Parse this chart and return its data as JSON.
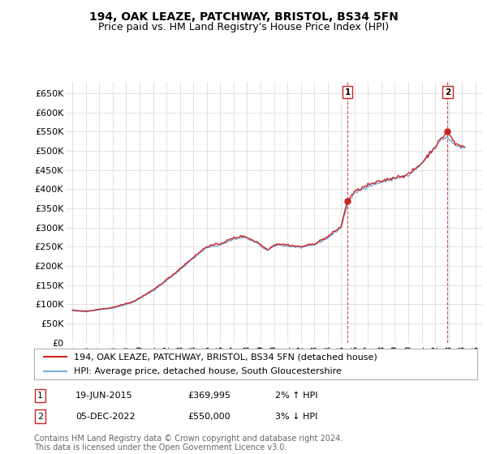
{
  "title": "194, OAK LEAZE, PATCHWAY, BRISTOL, BS34 5FN",
  "subtitle": "Price paid vs. HM Land Registry's House Price Index (HPI)",
  "ylabel_ticks": [
    "£0",
    "£50K",
    "£100K",
    "£150K",
    "£200K",
    "£250K",
    "£300K",
    "£350K",
    "£400K",
    "£450K",
    "£500K",
    "£550K",
    "£600K",
    "£650K"
  ],
  "ytick_values": [
    0,
    50000,
    100000,
    150000,
    200000,
    250000,
    300000,
    350000,
    400000,
    450000,
    500000,
    550000,
    600000,
    650000
  ],
  "ylim": [
    0,
    680000
  ],
  "xlim_start": 1994.5,
  "xlim_end": 2025.5,
  "hpi_color": "#7aaddc",
  "price_color": "#cc2222",
  "marker1_x": 2015.47,
  "marker1_y": 369995,
  "marker2_x": 2022.92,
  "marker2_y": 550000,
  "legend_line1": "194, OAK LEAZE, PATCHWAY, BRISTOL, BS34 5FN (detached house)",
  "legend_line2": "HPI: Average price, detached house, South Gloucestershire",
  "annot1_label": "1",
  "annot1_date": "19-JUN-2015",
  "annot1_price": "£369,995",
  "annot1_pct": "2% ↑ HPI",
  "annot2_label": "2",
  "annot2_date": "05-DEC-2022",
  "annot2_price": "£550,000",
  "annot2_pct": "3% ↓ HPI",
  "footer": "Contains HM Land Registry data © Crown copyright and database right 2024.\nThis data is licensed under the Open Government Licence v3.0.",
  "bg_color": "#ffffff",
  "grid_color": "#dddddd",
  "title_fontsize": 10,
  "subtitle_fontsize": 9,
  "tick_fontsize": 8,
  "legend_fontsize": 8,
  "annot_fontsize": 8,
  "footer_fontsize": 7
}
